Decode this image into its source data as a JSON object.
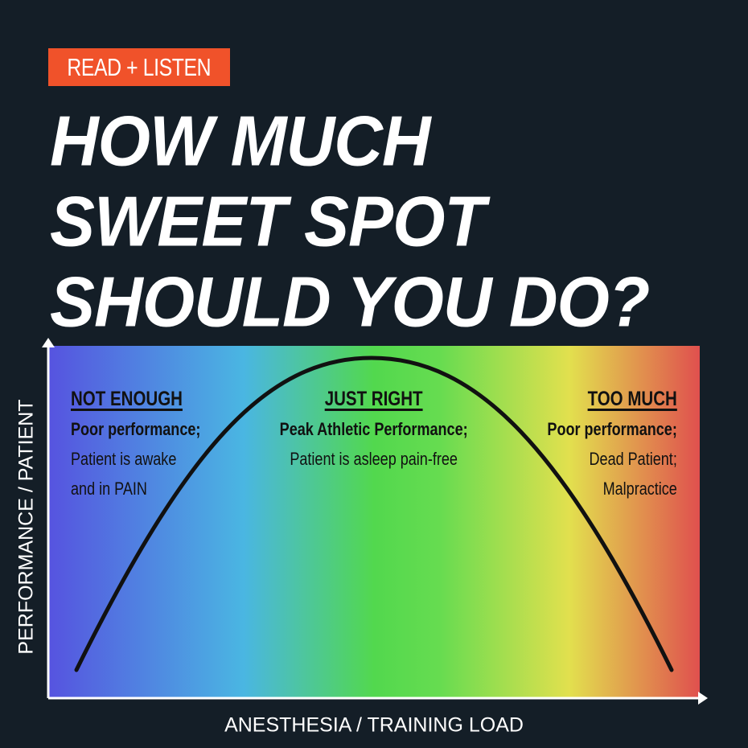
{
  "badge": {
    "label": "READ + LISTEN",
    "color": "#f0522a"
  },
  "title": {
    "lines": [
      "HOW MUCH",
      "SWEET SPOT",
      "SHOULD YOU DO?"
    ]
  },
  "diagram": {
    "y_axis_label": "PERFORMANCE / PATIENT",
    "x_axis_label": "ANESTHESIA / TRAINING LOAD",
    "curve": "inverted-u",
    "gradient_colors": [
      "#5653e0",
      "#4ab6e2",
      "#52d84e",
      "#e2e04e",
      "#e0504e"
    ],
    "zones": [
      {
        "heading": "NOT ENOUGH",
        "lines": [
          "Poor performance;",
          "Patient is awake",
          "and in PAIN"
        ]
      },
      {
        "heading": "JUST RIGHT",
        "lines": [
          "Peak Athletic Performance;",
          "Patient is asleep pain-free"
        ]
      },
      {
        "heading": "TOO MUCH",
        "lines": [
          "Poor performance;",
          "Dead Patient;",
          "Malpractice"
        ]
      }
    ]
  }
}
